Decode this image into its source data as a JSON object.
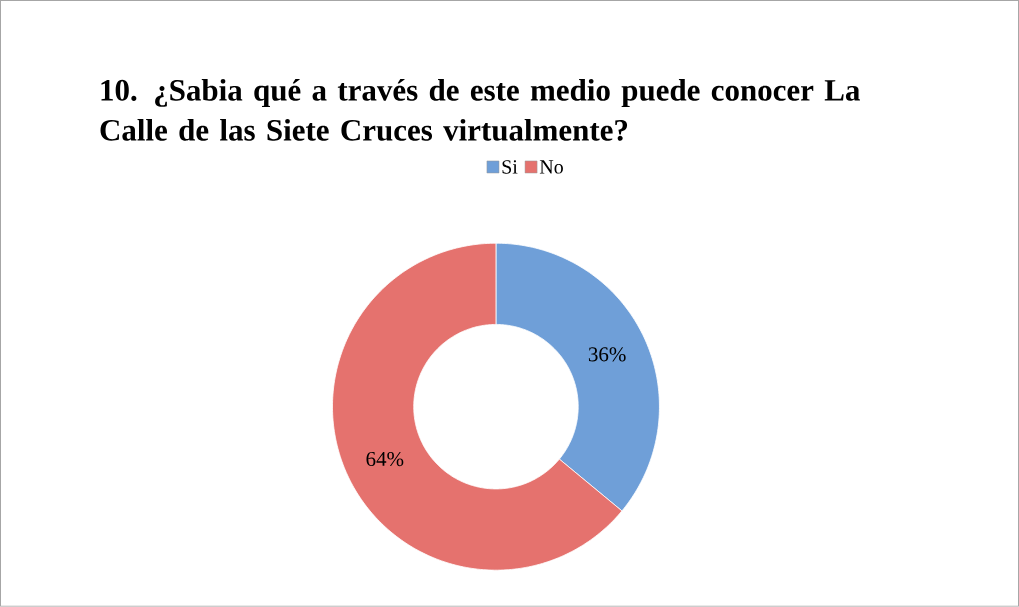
{
  "chart_data": {
    "type": "donut",
    "title": "10.  ¿Sabia qué a través  de este medio puede conocer La Calle de las Siete Cruces virtualmente?",
    "categories": [
      "Si",
      "No"
    ],
    "values": [
      36,
      64
    ],
    "value_labels": [
      "36%",
      "64%"
    ],
    "colors": [
      "#6f9fd8",
      "#e5726e"
    ],
    "legend": "top"
  }
}
